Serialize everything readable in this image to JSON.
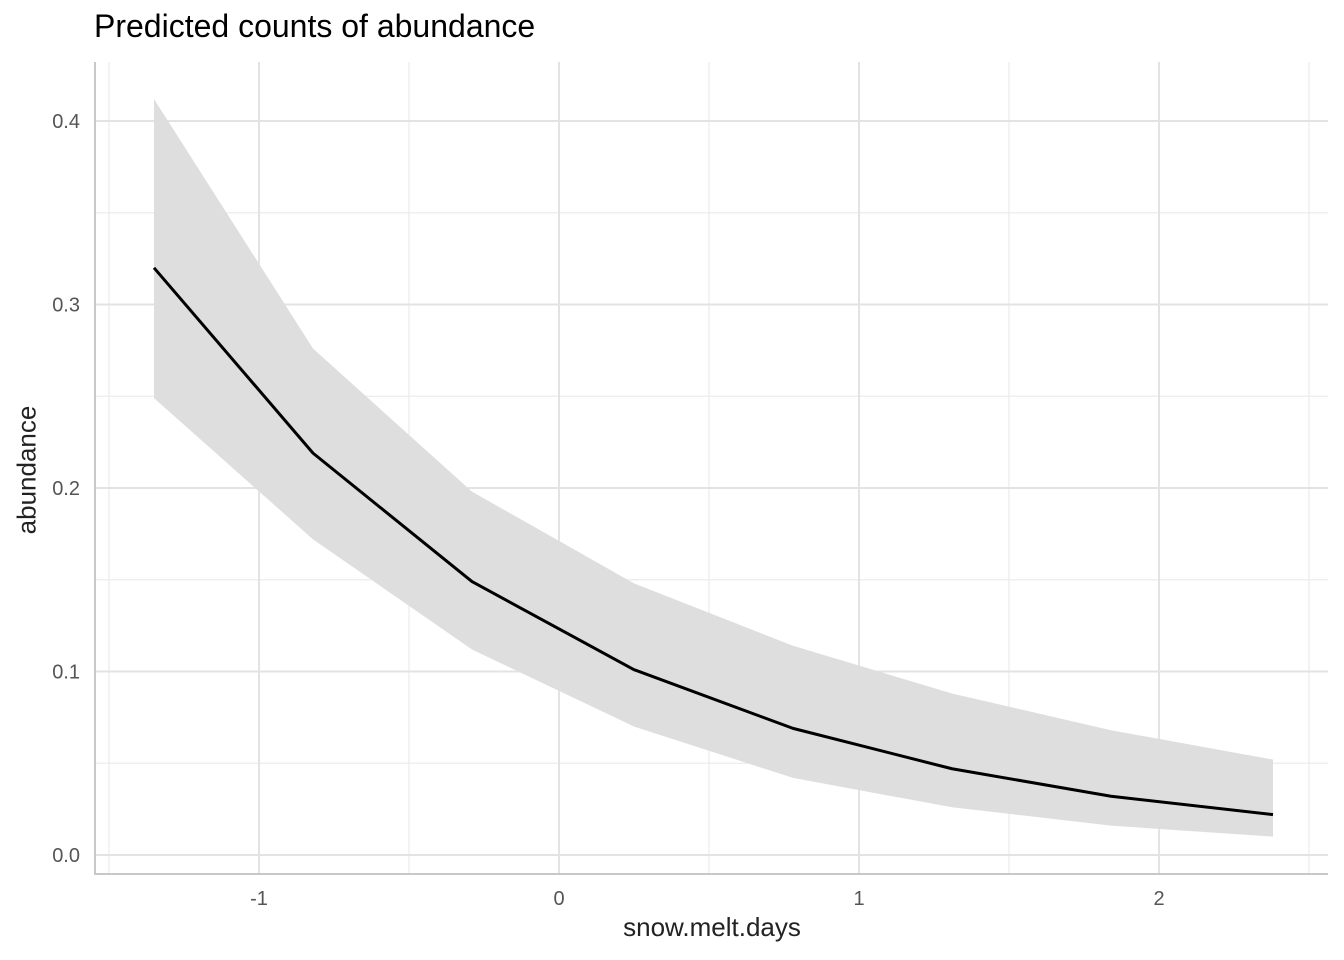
{
  "chart_data": {
    "type": "line",
    "title": "Predicted counts of abundance",
    "xlabel": "snow.melt.days",
    "ylabel": "abundance",
    "xlim": [
      -1.5,
      2.5
    ],
    "ylim": [
      0.0,
      0.42
    ],
    "x_ticks": [
      -1,
      0,
      1,
      2
    ],
    "x_tick_labels": [
      "-1",
      "0",
      "1",
      "2"
    ],
    "y_ticks": [
      0.0,
      0.1,
      0.2,
      0.3,
      0.4
    ],
    "y_tick_labels": [
      "0.0",
      "0.1",
      "0.2",
      "0.3",
      "0.4"
    ],
    "grid": true,
    "series": [
      {
        "x": [
          -1.35,
          -0.82,
          -0.29,
          0.25,
          0.78,
          1.31,
          1.84,
          2.38
        ],
        "values": [
          0.32,
          0.219,
          0.149,
          0.101,
          0.069,
          0.047,
          0.032,
          0.022
        ],
        "lower": [
          0.249,
          0.172,
          0.112,
          0.07,
          0.042,
          0.026,
          0.016,
          0.01
        ],
        "upper": [
          0.412,
          0.276,
          0.198,
          0.148,
          0.114,
          0.088,
          0.068,
          0.052
        ],
        "color": "#000000",
        "band_color": "#dedede"
      }
    ]
  }
}
